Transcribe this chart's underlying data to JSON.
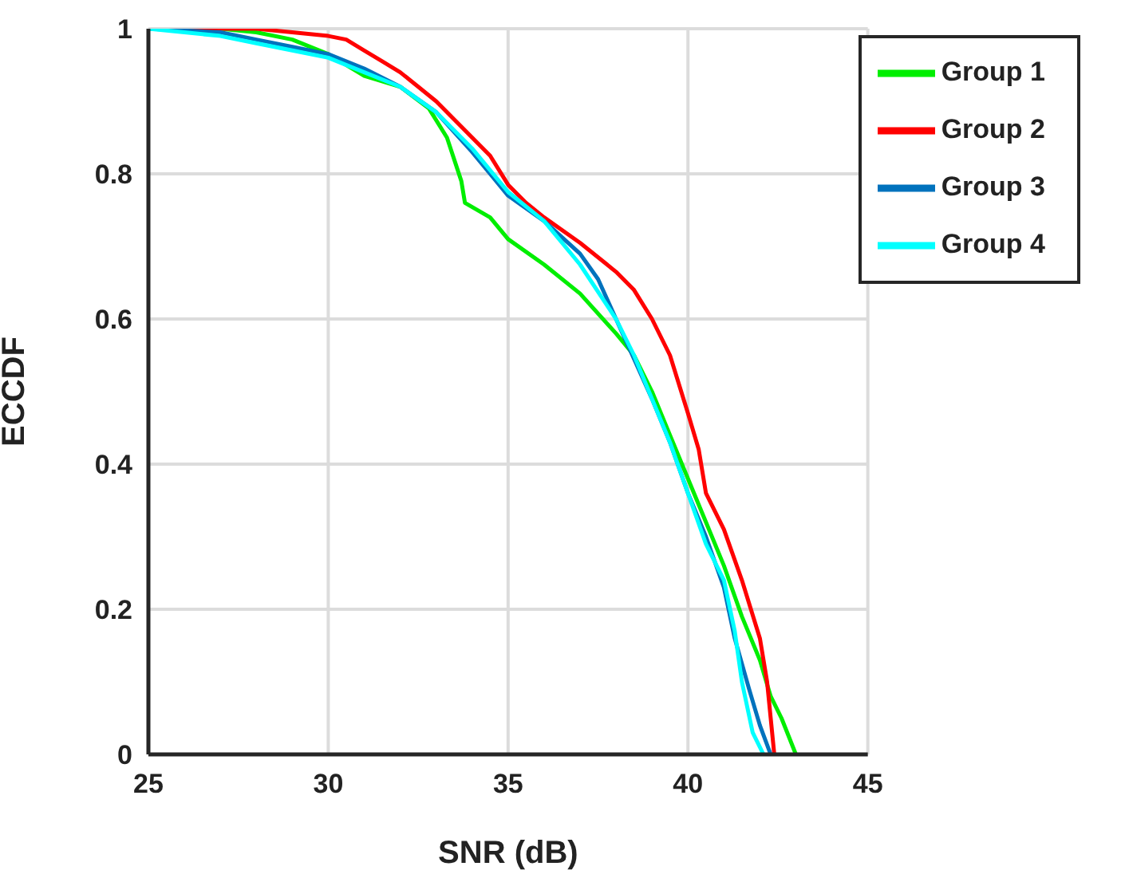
{
  "chart_data": {
    "type": "line",
    "xlabel": "SNR (dB)",
    "ylabel": "ECCDF",
    "xlim": [
      25,
      45
    ],
    "xticks": [
      25,
      30,
      35,
      40,
      45
    ],
    "ylim": [
      0,
      1
    ],
    "yticks": [
      0,
      0.2,
      0.4,
      0.6,
      0.8,
      1
    ],
    "grid": true,
    "legend": "top right",
    "marker": "none",
    "line_style": "solid",
    "series": [
      {
        "name": "Group 1",
        "color": "#00ee00",
        "x": [
          25,
          27,
          28,
          29,
          30,
          31,
          32,
          32.8,
          33.3,
          33.7,
          33.8,
          34.5,
          35,
          36,
          37,
          38,
          38.5,
          39,
          39.5,
          40,
          40.5,
          41,
          41.5,
          42,
          42.3,
          42.6,
          43
        ],
        "values": [
          1,
          1,
          0.995,
          0.985,
          0.965,
          0.935,
          0.92,
          0.89,
          0.85,
          0.79,
          0.76,
          0.74,
          0.71,
          0.675,
          0.635,
          0.58,
          0.55,
          0.5,
          0.44,
          0.38,
          0.32,
          0.26,
          0.19,
          0.13,
          0.08,
          0.05,
          0
        ]
      },
      {
        "name": "Group 2",
        "color": "#ff0000",
        "x": [
          25,
          28,
          29,
          30,
          30.5,
          31,
          31.5,
          32,
          32.5,
          33,
          33.5,
          34,
          34.5,
          35,
          35.5,
          36,
          37,
          38,
          38.5,
          39,
          39.5,
          40,
          40.3,
          40.5,
          41,
          41.5,
          42,
          42.2,
          42.3,
          42.4
        ],
        "values": [
          1,
          1,
          0.995,
          0.99,
          0.985,
          0.97,
          0.955,
          0.94,
          0.92,
          0.9,
          0.875,
          0.85,
          0.825,
          0.785,
          0.76,
          0.74,
          0.705,
          0.665,
          0.64,
          0.6,
          0.55,
          0.47,
          0.42,
          0.36,
          0.31,
          0.24,
          0.16,
          0.1,
          0.05,
          0
        ]
      },
      {
        "name": "Group 3",
        "color": "#0072bd",
        "x": [
          25,
          27,
          28,
          29,
          30,
          31,
          32,
          33,
          34,
          34.5,
          35,
          36,
          37,
          37.5,
          38,
          38.5,
          39,
          39.5,
          40,
          40.5,
          41,
          41.3,
          41.7,
          42,
          42.3
        ],
        "values": [
          1,
          0.995,
          0.985,
          0.975,
          0.965,
          0.945,
          0.92,
          0.885,
          0.83,
          0.8,
          0.77,
          0.735,
          0.69,
          0.655,
          0.6,
          0.545,
          0.49,
          0.43,
          0.36,
          0.3,
          0.23,
          0.16,
          0.09,
          0.04,
          0
        ]
      },
      {
        "name": "Group 4",
        "color": "#00ffff",
        "x": [
          25,
          27,
          28,
          29,
          30,
          31,
          32,
          33,
          34,
          35,
          36,
          37,
          38,
          38.5,
          39,
          39.5,
          40,
          40.5,
          41,
          41.3,
          41.5,
          41.8,
          42.1
        ],
        "values": [
          1,
          0.99,
          0.98,
          0.97,
          0.96,
          0.94,
          0.92,
          0.885,
          0.835,
          0.775,
          0.735,
          0.675,
          0.6,
          0.55,
          0.49,
          0.43,
          0.36,
          0.29,
          0.24,
          0.17,
          0.1,
          0.03,
          0
        ]
      }
    ]
  }
}
